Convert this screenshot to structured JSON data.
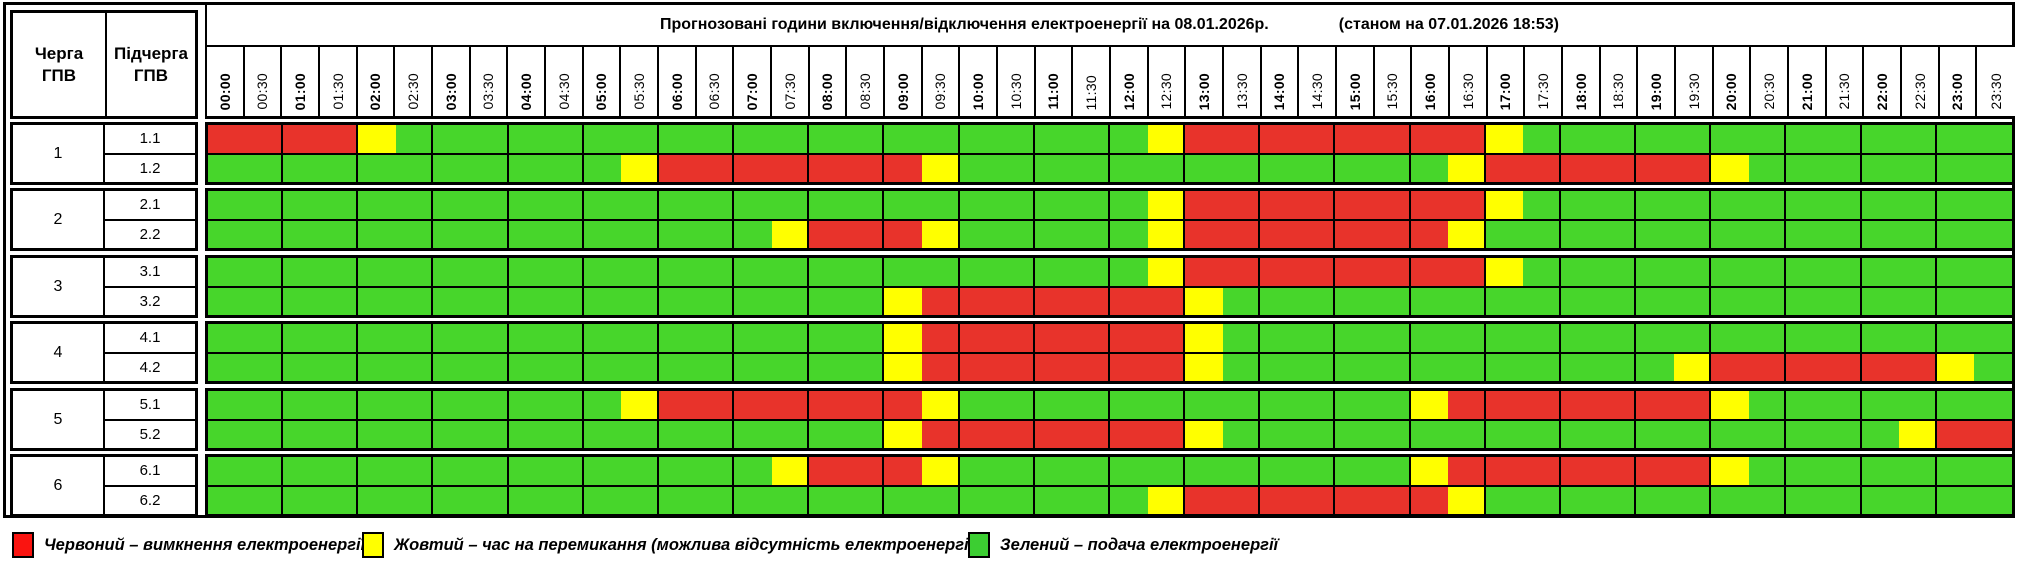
{
  "title": {
    "main": "Прогнозовані години включення/відключення електроенергії на 08.01.2026р.",
    "as_of": "(станом на 07.01.2026 18:53)"
  },
  "corner": {
    "queue": "Черга\nГПВ",
    "subqueue": "Підчерга\nГПВ"
  },
  "time_labels": [
    "00:00",
    "00:30",
    "01:00",
    "01:30",
    "02:00",
    "02:30",
    "03:00",
    "03:30",
    "04:00",
    "04:30",
    "05:00",
    "05:30",
    "06:00",
    "06:30",
    "07:00",
    "07:30",
    "08:00",
    "08:30",
    "09:00",
    "09:30",
    "10:00",
    "10:30",
    "11:00",
    "11:30",
    "12:00",
    "12:30",
    "13:00",
    "13:30",
    "14:00",
    "14:30",
    "15:00",
    "15:30",
    "16:00",
    "16:30",
    "17:00",
    "17:30",
    "18:00",
    "18:30",
    "19:00",
    "19:30",
    "20:00",
    "20:30",
    "21:00",
    "21:30",
    "22:00",
    "22:30",
    "23:00",
    "23:30"
  ],
  "colors": {
    "R": "#E8332B",
    "Y": "#FFFF00",
    "G": "#47D62B"
  },
  "groups": [
    {
      "queue": "1",
      "rows": [
        {
          "label": "1.1",
          "cells": "RRRRYGGGGGGGGGGGGGGGGGGGGYRRRRRRRRYGGGGGGGGGGGGG"
        },
        {
          "label": "1.2",
          "cells": "GGGGGGGGGGGYRRRRRRRYGGGGGGGGGGGGGYRRRRRRYGGGGGGG"
        }
      ]
    },
    {
      "queue": "2",
      "rows": [
        {
          "label": "2.1",
          "cells": "GGGGGGGGGGGGGGGGGGGGGGGGGYRRRRRRRRYGGGGGGGGGGGGG"
        },
        {
          "label": "2.2",
          "cells": "GGGGGGGGGGGGGGGYRRRYGGGGGYRRRRRRRYGGGGGGGGGGGGGG"
        }
      ]
    },
    {
      "queue": "3",
      "rows": [
        {
          "label": "3.1",
          "cells": "GGGGGGGGGGGGGGGGGGGGGGGGGYRRRRRRRRYGGGGGGGGGGGGG"
        },
        {
          "label": "3.2",
          "cells": "GGGGGGGGGGGGGGGGGGYRRRRRRRYGGGGGGGGGGGGGGGGGGGGG"
        }
      ]
    },
    {
      "queue": "4",
      "rows": [
        {
          "label": "4.1",
          "cells": "GGGGGGGGGGGGGGGGGGYRRRRRRRYGGGGGGGGGGGGGGGGGGGGG"
        },
        {
          "label": "4.2",
          "cells": "GGGGGGGGGGGGGGGGGGYRRRRRRRYGGGGGGGGGGGGYRRRRRRYG"
        }
      ]
    },
    {
      "queue": "5",
      "rows": [
        {
          "label": "5.1",
          "cells": "GGGGGGGGGGGYRRRRRRRYGGGGGGGGGGGGYRRRRRRRYGGGGGGG"
        },
        {
          "label": "5.2",
          "cells": "GGGGGGGGGGGGGGGGGGYRRRRRRRYGGGGGGGGGGGGGGGGGGYRR"
        }
      ]
    },
    {
      "queue": "6",
      "rows": [
        {
          "label": "6.1",
          "cells": "GGGGGGGGGGGGGGGYRRRYGGGGGGGGGGGGYRRRRRRRYGGGGGGG"
        },
        {
          "label": "6.2",
          "cells": "GGGGGGGGGGGGGGGGGGGGGGGGGYRRRRRRRYGGGGGGGGGGGGGG"
        }
      ]
    }
  ],
  "legend": [
    {
      "key": "R",
      "color": "#FA1410",
      "label": "Червоний – вимкнення електроенергії"
    },
    {
      "key": "Y",
      "color": "#FFFF00",
      "label": "Жовтий – час на перемикання (можлива відсутність електроенергії)"
    },
    {
      "key": "G",
      "color": "#3CCE32",
      "label": "Зелений – подача електроенергії"
    }
  ]
}
